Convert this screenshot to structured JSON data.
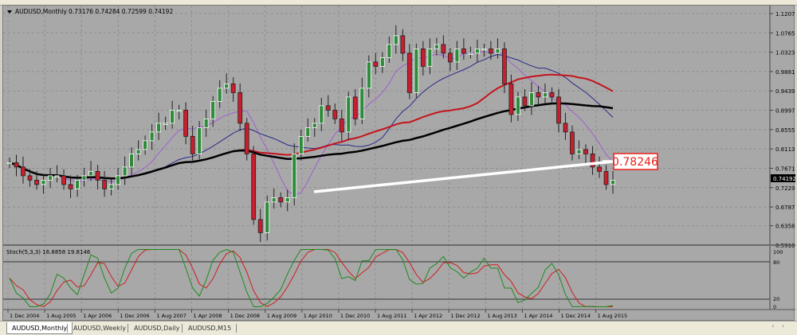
{
  "chart_header": {
    "symbol_line": "AUDUSD,Monthly",
    "ohlc": "0.73176 0.74284 0.72599 0.74192"
  },
  "price_axis": {
    "ticks": [
      "1.12070",
      "1.07650",
      "1.03230",
      "0.98810",
      "0.94390",
      "0.89970",
      "0.85550",
      "0.81130",
      "0.76710",
      "0.72290",
      "0.67870",
      "0.63580",
      "0.59160"
    ],
    "current_price_label": "0.74192"
  },
  "annotation": {
    "value": "0.78246",
    "color": "#e8201c"
  },
  "time_axis": {
    "labels": [
      "1 Dec 2004",
      "1 Aug 2005",
      "1 Apr 2006",
      "1 Dec 2006",
      "1 Aug 2007",
      "1 Apr 2008",
      "1 Dec 2008",
      "1 Aug 2009",
      "1 Apr 2010",
      "1 Dec 2010",
      "1 Aug 2011",
      "1 Apr 2012",
      "1 Dec 2012",
      "1 Aug 2013",
      "1 Apr 2014",
      "1 Dec 2014",
      "1 Aug 2015"
    ]
  },
  "stochastic": {
    "title": "Stoch(5,3,3) 16.8858 19.8146",
    "levels": [
      "100",
      "80",
      "20",
      "0"
    ]
  },
  "tabs": [
    {
      "label": "AUDUSD,Monthly",
      "active": true
    },
    {
      "label": "AUDUSD,Weekly",
      "active": false
    },
    {
      "label": "AUDUSD,Daily",
      "active": false
    },
    {
      "label": "AUDUSD,M15",
      "active": false
    }
  ],
  "colors": {
    "background": "#a8a8a8",
    "grid": "#8f8f8f",
    "bull_candle": "#ffffff",
    "bull_fill": "#2e8b3a",
    "bear_fill": "#c81e2e",
    "ma_black": "#000000",
    "ma_red": "#c4141c",
    "ma_blue": "#2a2a8a",
    "ma_violet": "#a060d0",
    "trendline": "#ffffff",
    "stoch_main": "#1e8a1e",
    "stoch_signal": "#d01e1e"
  },
  "chart_data": {
    "type": "candlestick",
    "title": "AUDUSD,Monthly",
    "ylim": [
      0.5916,
      1.1207
    ],
    "series": [
      {
        "name": "AUDUSD",
        "type": "ohlc",
        "close": [
          0.78,
          0.77,
          0.75,
          0.74,
          0.73,
          0.74,
          0.75,
          0.75,
          0.73,
          0.72,
          0.74,
          0.75,
          0.76,
          0.74,
          0.72,
          0.73,
          0.75,
          0.77,
          0.8,
          0.81,
          0.83,
          0.85,
          0.87,
          0.87,
          0.9,
          0.9,
          0.84,
          0.8,
          0.86,
          0.88,
          0.92,
          0.95,
          0.96,
          0.94,
          0.87,
          0.8,
          0.65,
          0.62,
          0.69,
          0.7,
          0.69,
          0.7,
          0.8,
          0.84,
          0.86,
          0.87,
          0.91,
          0.9,
          0.88,
          0.85,
          0.93,
          0.88,
          0.95,
          1.01,
          1.0,
          1.02,
          1.05,
          1.07,
          1.03,
          0.94,
          1.04,
          1.0,
          1.04,
          1.05,
          1.03,
          1.01,
          1.04,
          1.03,
          1.03,
          1.04,
          1.04,
          1.03,
          1.04,
          0.96,
          0.89,
          0.93,
          0.91,
          0.94,
          0.93,
          0.94,
          0.93,
          0.87,
          0.85,
          0.8,
          0.81,
          0.8,
          0.77,
          0.76,
          0.73,
          0.74
        ]
      }
    ]
  }
}
